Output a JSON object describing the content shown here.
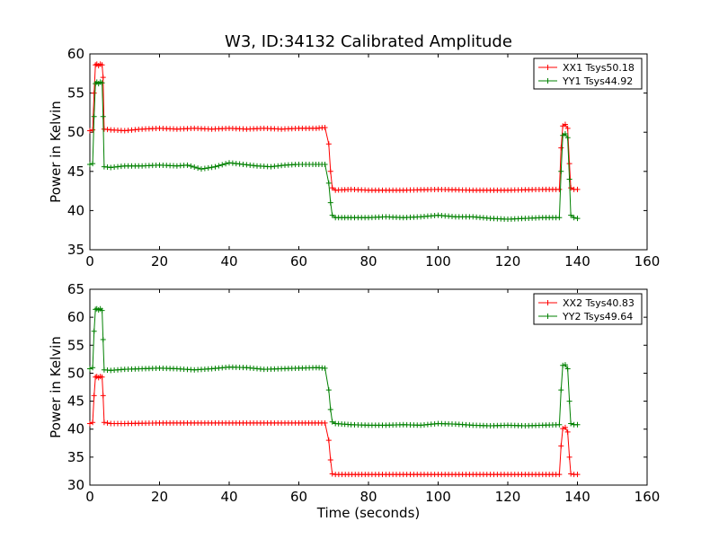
{
  "title": "W3, ID:34132 Calibrated Amplitude",
  "chart_data": [
    {
      "type": "line",
      "ylabel": "Power in Kelvin",
      "xlabel": "",
      "xlim": [
        0,
        160
      ],
      "ylim": [
        35,
        60
      ],
      "xticks": [
        0,
        20,
        40,
        60,
        80,
        100,
        120,
        140,
        160
      ],
      "yticks": [
        35,
        40,
        45,
        50,
        55,
        60
      ],
      "legend_position": "top-right",
      "grid": false,
      "series": [
        {
          "name": "XX1 Tsys50.18",
          "color": "#ff0000",
          "points": [
            [
              0,
              50.2
            ],
            [
              0.8,
              50.3
            ],
            [
              1.2,
              55
            ],
            [
              1.6,
              58.6
            ],
            [
              2,
              58.7
            ],
            [
              2.5,
              58.5
            ],
            [
              3,
              58.7
            ],
            [
              3.5,
              58.6
            ],
            [
              3.8,
              57
            ],
            [
              4.1,
              50.4
            ],
            [
              6,
              50.3
            ],
            [
              10,
              50.2
            ],
            [
              15,
              50.4
            ],
            [
              20,
              50.5
            ],
            [
              25,
              50.4
            ],
            [
              30,
              50.5
            ],
            [
              35,
              50.4
            ],
            [
              40,
              50.5
            ],
            [
              45,
              50.4
            ],
            [
              50,
              50.5
            ],
            [
              55,
              50.4
            ],
            [
              60,
              50.5
            ],
            [
              65,
              50.5
            ],
            [
              67.5,
              50.6
            ],
            [
              68.6,
              48.5
            ],
            [
              69.1,
              45
            ],
            [
              69.6,
              42.9
            ],
            [
              70.5,
              42.6
            ],
            [
              75,
              42.7
            ],
            [
              80,
              42.6
            ],
            [
              90,
              42.6
            ],
            [
              100,
              42.7
            ],
            [
              110,
              42.6
            ],
            [
              120,
              42.6
            ],
            [
              130,
              42.7
            ],
            [
              134.8,
              42.7
            ],
            [
              135.3,
              48
            ],
            [
              135.8,
              50.8
            ],
            [
              136.5,
              51
            ],
            [
              137.2,
              50.5
            ],
            [
              137.7,
              46
            ],
            [
              138.1,
              42.9
            ],
            [
              139,
              42.7
            ],
            [
              140,
              42.7
            ]
          ]
        },
        {
          "name": "YY1 Tsys44.92",
          "color": "#008000",
          "points": [
            [
              0,
              45.9
            ],
            [
              0.8,
              46
            ],
            [
              1.2,
              52
            ],
            [
              1.6,
              56.2
            ],
            [
              2,
              56.4
            ],
            [
              2.5,
              56.2
            ],
            [
              3,
              56.4
            ],
            [
              3.5,
              56.3
            ],
            [
              3.8,
              52
            ],
            [
              4.1,
              45.6
            ],
            [
              6,
              45.5
            ],
            [
              10,
              45.7
            ],
            [
              15,
              45.7
            ],
            [
              20,
              45.8
            ],
            [
              25,
              45.7
            ],
            [
              28,
              45.8
            ],
            [
              32,
              45.3
            ],
            [
              36,
              45.6
            ],
            [
              40,
              46.1
            ],
            [
              44,
              45.9
            ],
            [
              48,
              45.7
            ],
            [
              52,
              45.6
            ],
            [
              56,
              45.8
            ],
            [
              60,
              45.9
            ],
            [
              64,
              45.9
            ],
            [
              67.5,
              45.9
            ],
            [
              68.6,
              43.5
            ],
            [
              69.1,
              41
            ],
            [
              69.6,
              39.4
            ],
            [
              70.5,
              39.1
            ],
            [
              75,
              39.1
            ],
            [
              80,
              39.1
            ],
            [
              85,
              39.2
            ],
            [
              90,
              39.1
            ],
            [
              95,
              39.2
            ],
            [
              100,
              39.4
            ],
            [
              105,
              39.2
            ],
            [
              110,
              39.2
            ],
            [
              115,
              39
            ],
            [
              120,
              38.9
            ],
            [
              125,
              39
            ],
            [
              130,
              39.1
            ],
            [
              134.8,
              39.1
            ],
            [
              135.3,
              45
            ],
            [
              135.8,
              49.6
            ],
            [
              136.5,
              49.8
            ],
            [
              137.2,
              49.3
            ],
            [
              137.7,
              44
            ],
            [
              138.1,
              39.4
            ],
            [
              139,
              39.1
            ],
            [
              140,
              39
            ]
          ]
        }
      ]
    },
    {
      "type": "line",
      "ylabel": "Power in Kelvin",
      "xlabel": "Time (seconds)",
      "xlim": [
        0,
        160
      ],
      "ylim": [
        30,
        65
      ],
      "xticks": [
        0,
        20,
        40,
        60,
        80,
        100,
        120,
        140,
        160
      ],
      "yticks": [
        30,
        35,
        40,
        45,
        50,
        55,
        60,
        65
      ],
      "legend_position": "top-right",
      "grid": false,
      "series": [
        {
          "name": "XX2 Tsys40.83",
          "color": "#ff0000",
          "points": [
            [
              0,
              41
            ],
            [
              0.8,
              41.2
            ],
            [
              1.2,
              46
            ],
            [
              1.6,
              49.3
            ],
            [
              2,
              49.4
            ],
            [
              2.5,
              49.2
            ],
            [
              3,
              49.4
            ],
            [
              3.5,
              49.3
            ],
            [
              3.8,
              46
            ],
            [
              4.1,
              41.2
            ],
            [
              6,
              41
            ],
            [
              10,
              41
            ],
            [
              20,
              41.1
            ],
            [
              30,
              41.1
            ],
            [
              40,
              41.1
            ],
            [
              50,
              41.1
            ],
            [
              60,
              41.1
            ],
            [
              67.5,
              41.1
            ],
            [
              68.6,
              38
            ],
            [
              69.1,
              34.5
            ],
            [
              69.6,
              32
            ],
            [
              70.5,
              31.9
            ],
            [
              80,
              31.9
            ],
            [
              90,
              31.9
            ],
            [
              100,
              31.9
            ],
            [
              110,
              31.9
            ],
            [
              120,
              31.9
            ],
            [
              130,
              31.9
            ],
            [
              134.8,
              31.9
            ],
            [
              135.3,
              37
            ],
            [
              135.8,
              40.1
            ],
            [
              136.5,
              40.3
            ],
            [
              137.2,
              39.5
            ],
            [
              137.7,
              35
            ],
            [
              138.1,
              32
            ],
            [
              139,
              31.9
            ],
            [
              140,
              31.9
            ]
          ]
        },
        {
          "name": "YY2 Tsys49.64",
          "color": "#008000",
          "points": [
            [
              0,
              50.8
            ],
            [
              0.8,
              51
            ],
            [
              1.2,
              57.5
            ],
            [
              1.6,
              61.4
            ],
            [
              2,
              61.5
            ],
            [
              2.5,
              61.3
            ],
            [
              3,
              61.5
            ],
            [
              3.5,
              61.2
            ],
            [
              3.8,
              56
            ],
            [
              4.1,
              50.6
            ],
            [
              6,
              50.5
            ],
            [
              10,
              50.7
            ],
            [
              15,
              50.8
            ],
            [
              20,
              50.9
            ],
            [
              25,
              50.8
            ],
            [
              30,
              50.6
            ],
            [
              35,
              50.8
            ],
            [
              40,
              51.1
            ],
            [
              45,
              51
            ],
            [
              50,
              50.7
            ],
            [
              55,
              50.8
            ],
            [
              60,
              50.9
            ],
            [
              65,
              51
            ],
            [
              67.5,
              50.9
            ],
            [
              68.6,
              47
            ],
            [
              69.1,
              43.5
            ],
            [
              69.6,
              41.3
            ],
            [
              70.5,
              41
            ],
            [
              75,
              40.8
            ],
            [
              80,
              40.7
            ],
            [
              85,
              40.7
            ],
            [
              90,
              40.8
            ],
            [
              95,
              40.7
            ],
            [
              100,
              41
            ],
            [
              105,
              40.9
            ],
            [
              110,
              40.7
            ],
            [
              115,
              40.6
            ],
            [
              120,
              40.7
            ],
            [
              125,
              40.6
            ],
            [
              130,
              40.7
            ],
            [
              134.8,
              40.8
            ],
            [
              135.3,
              47
            ],
            [
              135.8,
              51.4
            ],
            [
              136.5,
              51.5
            ],
            [
              137.2,
              50.8
            ],
            [
              137.7,
              45
            ],
            [
              138.1,
              41
            ],
            [
              139,
              40.8
            ],
            [
              140,
              40.8
            ]
          ]
        }
      ]
    }
  ]
}
